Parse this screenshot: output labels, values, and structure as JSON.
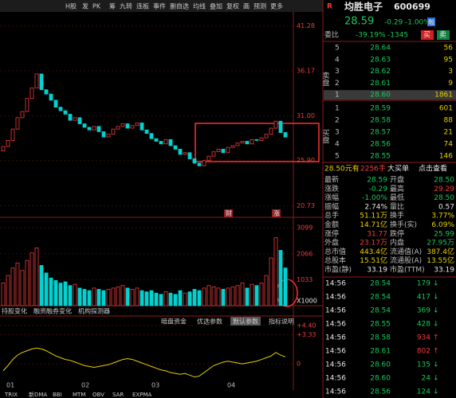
{
  "toolbar": [
    "H股",
    "发",
    "PK",
    "筹",
    "九转",
    "连板",
    "事件",
    "删自选",
    "均线",
    "叠加",
    "复权",
    "画",
    "预测",
    "更多"
  ],
  "stock": {
    "badge": "R",
    "name": "均胜电子",
    "code": "600699"
  },
  "quote": {
    "price": "28.59",
    "change": "-0.29",
    "pct": "-1.00%",
    "tag": "融"
  },
  "weibi": {
    "label": "委比",
    "pct": "-39.19%",
    "diff": "-1345",
    "buy": "买",
    "sell": "卖"
  },
  "sell_label": "卖盘",
  "buy_label": "买盘",
  "asks": [
    [
      "5",
      "28.64",
      "56"
    ],
    [
      "4",
      "28.63",
      "95"
    ],
    [
      "3",
      "28.62",
      "3"
    ],
    [
      "2",
      "28.61",
      "9"
    ],
    [
      "1",
      "28.60",
      "1861"
    ]
  ],
  "bids": [
    [
      "1",
      "28.59",
      "601"
    ],
    [
      "2",
      "28.58",
      "88"
    ],
    [
      "3",
      "28.57",
      "21"
    ],
    [
      "4",
      "28.56",
      "74"
    ],
    [
      "5",
      "28.55",
      "146"
    ]
  ],
  "big_order": [
    "28.50元有",
    "2256手",
    "大买单",
    "点击查看"
  ],
  "stats": [
    [
      "最新",
      "28.59",
      "开盘",
      "28.50"
    ],
    [
      "涨跌",
      "-0.29",
      "最高",
      "29.29"
    ],
    [
      "涨幅",
      "-1.00%",
      "最低",
      "28.50"
    ],
    [
      "振幅",
      "2.74%",
      "量比",
      "0.57"
    ],
    [
      "总手",
      "51.11万",
      "换手",
      "3.77%"
    ],
    [
      "金额",
      "14.71亿",
      "换手(实)",
      "6.09%"
    ],
    [
      "涨停",
      "31.77",
      "跌停",
      "25.99"
    ],
    [
      "外盘",
      "23.17万",
      "内盘",
      "27.95万"
    ],
    [
      "总市值",
      "443.4亿",
      "流通值(A)",
      "387.4亿"
    ],
    [
      "总股本",
      "15.51亿",
      "流通股(A)",
      "13.55亿"
    ],
    [
      "市盈(静)",
      "33.19",
      "市盈(TTM)",
      "33.19"
    ]
  ],
  "trades": [
    [
      "14:56",
      "28.54",
      "179",
      "↓"
    ],
    [
      "14:56",
      "28.54",
      "417",
      "↓"
    ],
    [
      "14:56",
      "28.54",
      "369",
      "↓"
    ],
    [
      "14:56",
      "28.55",
      "428",
      "↓"
    ],
    [
      "14:56",
      "28.58",
      "934",
      "↑"
    ],
    [
      "14:56",
      "28.61",
      "802",
      "↑"
    ],
    [
      "14:56",
      "28.60",
      "135",
      "↓"
    ],
    [
      "14:56",
      "28.60",
      "24",
      "↓"
    ],
    [
      "14:56",
      "28.56",
      "124",
      "↓"
    ]
  ],
  "tabs_left": [
    "持股变化",
    "融资融券变化",
    "机构探测器"
  ],
  "tabs_mid": [
    "暗盘资金",
    "优选参数",
    "默认参数",
    "指标说明"
  ],
  "indicators": [
    "TRIX",
    "新DMA",
    "BBI",
    "MTM",
    "OBV",
    "SAR",
    "EXPMA"
  ],
  "chart_data": [
    {
      "type": "candlestick",
      "first_open": 27.0,
      "closes": [
        27.5,
        28.2,
        29.5,
        30.8,
        31.5,
        33,
        34.2,
        35.8,
        34,
        33.5,
        32.8,
        32,
        31.6,
        31.2,
        30.5,
        30.8,
        30.1,
        29.7,
        29.4,
        29.8,
        29.2,
        28.6,
        28.9,
        29.5,
        29.8,
        30.1,
        29.6,
        29.9,
        30.2,
        29.4,
        29,
        28.4,
        28.1,
        27.8,
        28.3,
        27.6,
        27.2,
        26.6,
        26.8,
        26.1,
        25.6,
        25.3,
        25.9,
        26.4,
        26.9,
        27.2,
        26.8,
        27.4,
        27.6,
        27.9,
        28.1,
        27.8,
        28.3,
        28.2,
        28.5,
        28.9,
        29.6,
        30.4,
        29.1,
        28.59
      ],
      "ylim": [
        19.5,
        42.8
      ],
      "yticks": [
        41.28,
        36.17,
        {
          "value": 31,
          "label": "31.00"
        },
        {
          "value": 25.9,
          "label": "25.90"
        },
        20.73
      ],
      "x_labels": [
        "01",
        "02",
        "03",
        "04"
      ],
      "markers": [
        "财",
        "涨"
      ],
      "up_color": "#f03c3c",
      "down_color": "#00d2d2"
    },
    {
      "type": "bar",
      "unit": "X1000",
      "values": [
        900,
        1200,
        1500,
        1700,
        1400,
        1800,
        2100,
        2300,
        1600,
        1300,
        1100,
        1000,
        900,
        950,
        800,
        850,
        700,
        650,
        600,
        700,
        650,
        600,
        650,
        700,
        750,
        800,
        700,
        650,
        700,
        600,
        550,
        600,
        500,
        450,
        550,
        500,
        450,
        600,
        500,
        550,
        650,
        600,
        700,
        800,
        750,
        700,
        650,
        700,
        750,
        800,
        900,
        700,
        850,
        800,
        900,
        1200,
        1900,
        2700,
        2200,
        1500
      ],
      "ylim": [
        0,
        3420
      ],
      "yticks": [
        3099,
        2066,
        1033
      ]
    },
    {
      "type": "line",
      "color": "#e8d000",
      "values": [
        -0.8,
        -0.2,
        0.5,
        1.0,
        1.3,
        1.5,
        1.7,
        1.8,
        1.7,
        1.5,
        1.2,
        0.9,
        0.7,
        0.5,
        0.4,
        0.2,
        0.0,
        -0.2,
        -0.3,
        -0.4,
        -0.3,
        -0.2,
        -0.1,
        0.1,
        0.3,
        0.5,
        0.6,
        0.5,
        0.3,
        0.1,
        -0.1,
        -0.3,
        -0.5,
        -0.7,
        -0.8,
        -1.0,
        -1.1,
        -1.2,
        -1.1,
        -1.3,
        -1.5,
        -1.4,
        -1.0,
        -0.6,
        -0.2,
        0.0,
        0.2,
        0.3,
        0.2,
        0.1,
        0.0,
        0.1,
        0.2,
        0.3,
        0.5,
        0.7,
        0.9,
        1.3,
        1.0,
        0.8
      ],
      "ylim": [
        -3,
        5.2
      ],
      "yticks": [
        {
          "value": 4.4,
          "label": "+4.40"
        },
        {
          "value": 3.33,
          "label": "+3.33"
        },
        0
      ]
    }
  ]
}
